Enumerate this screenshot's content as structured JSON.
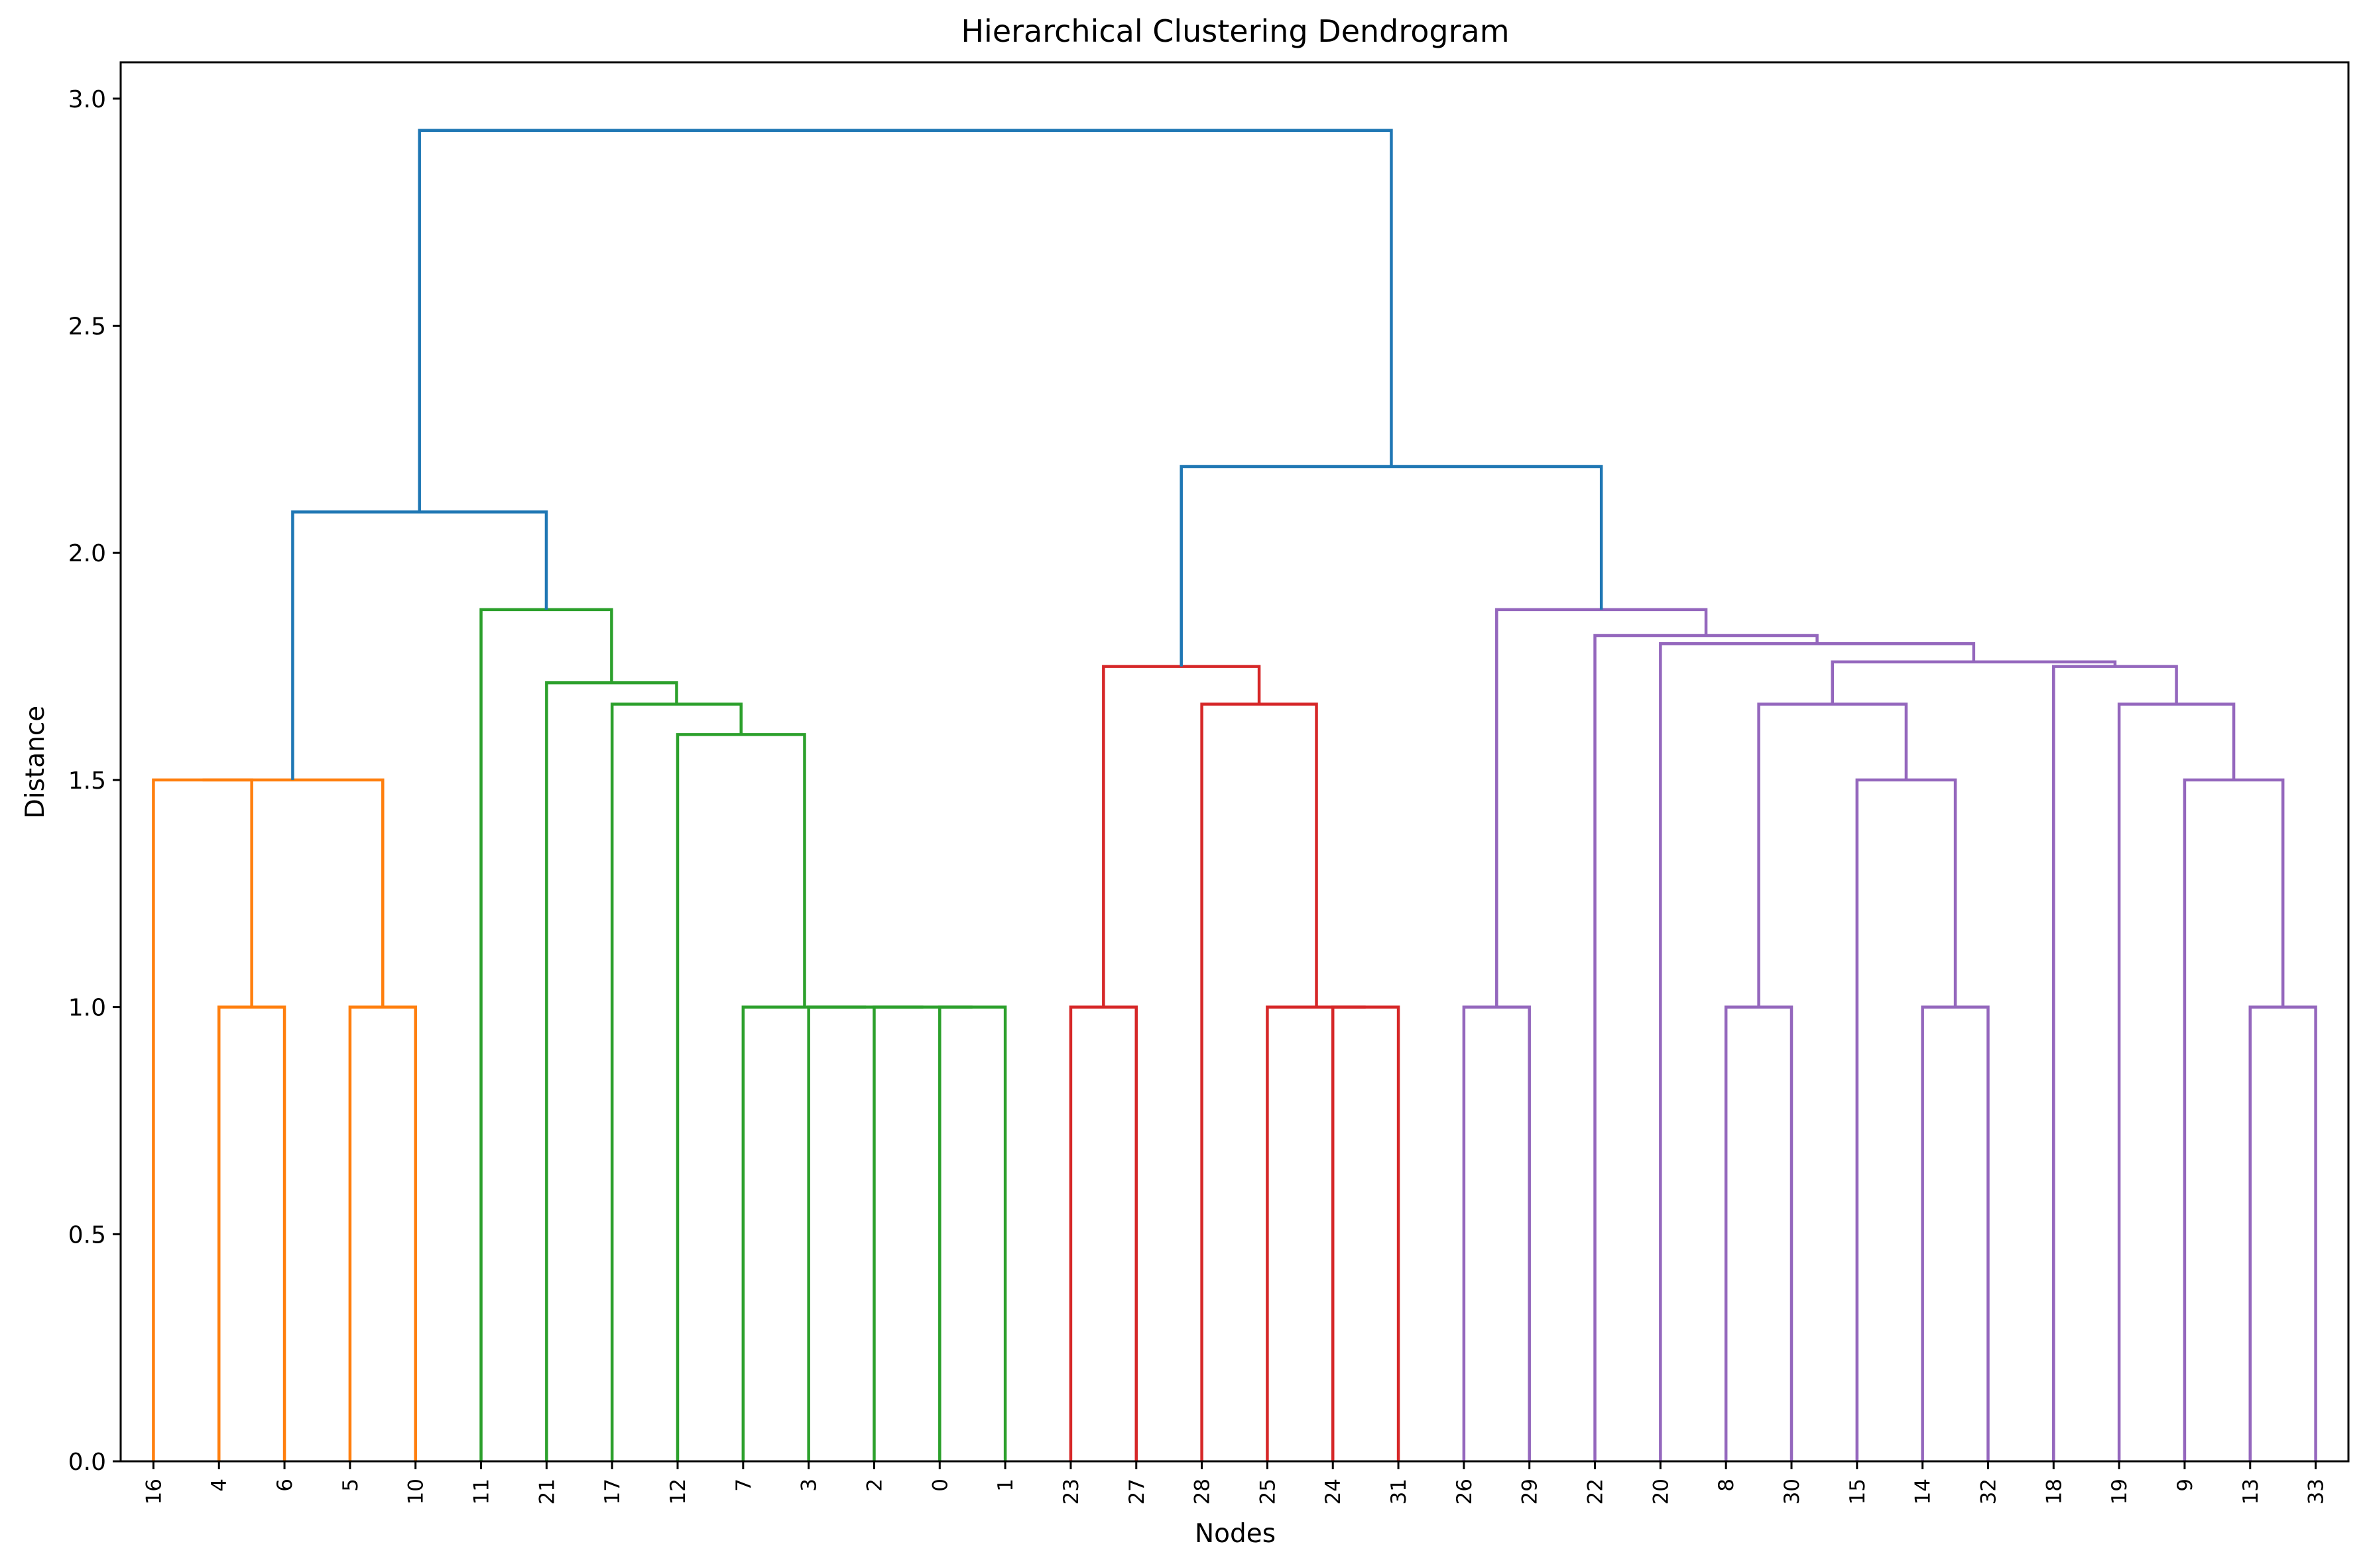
{
  "chart_data": {
    "type": "dendrogram",
    "title": "Hierarchical Clustering Dendrogram",
    "xlabel": "Nodes",
    "ylabel": "Distance",
    "ylim": [
      0,
      3.08
    ],
    "yticks": [
      "0.0",
      "0.5",
      "1.0",
      "1.5",
      "2.0",
      "2.5",
      "3.0"
    ],
    "ytick_values": [
      0,
      0.5,
      1.0,
      1.5,
      2.0,
      2.5,
      3.0
    ],
    "leaves": [
      "16",
      "4",
      "6",
      "5",
      "10",
      "11",
      "21",
      "17",
      "12",
      "7",
      "3",
      "2",
      "0",
      "1",
      "23",
      "27",
      "28",
      "25",
      "24",
      "31",
      "26",
      "29",
      "22",
      "20",
      "8",
      "30",
      "15",
      "14",
      "32",
      "18",
      "19",
      "9",
      "13",
      "33"
    ],
    "colors": {
      "root": "#1f77b4",
      "orange": "#ff7f0e",
      "green": "#2ca02c",
      "red": "#d62728",
      "purple": "#9467bd"
    },
    "links": [
      {
        "left": "L:1",
        "right": "L:2",
        "height": 1.0,
        "color": "orange"
      },
      {
        "left": "L:3",
        "right": "L:4",
        "height": 1.0,
        "color": "orange"
      },
      {
        "left": "L:0",
        "right": "N:0",
        "height": 1.5,
        "color": "orange"
      },
      {
        "left": "N:2",
        "right": "N:1",
        "height": 1.5,
        "color": "orange"
      },
      {
        "left": "L:12",
        "right": "L:13",
        "height": 1.0,
        "color": "green"
      },
      {
        "left": "L:11",
        "right": "N:4",
        "height": 1.0,
        "color": "green"
      },
      {
        "left": "L:10",
        "right": "N:5",
        "height": 1.0,
        "color": "green"
      },
      {
        "left": "L:9",
        "right": "N:6",
        "height": 1.0,
        "color": "green"
      },
      {
        "left": "L:8",
        "right": "N:7",
        "height": 1.6,
        "color": "green"
      },
      {
        "left": "L:7",
        "right": "N:8",
        "height": 1.667,
        "color": "green"
      },
      {
        "left": "L:6",
        "right": "N:9",
        "height": 1.714,
        "color": "green"
      },
      {
        "left": "L:5",
        "right": "N:10",
        "height": 1.875,
        "color": "green"
      },
      {
        "left": "N:3",
        "right": "N:11",
        "height": 2.09,
        "color": "root"
      },
      {
        "left": "L:14",
        "right": "L:15",
        "height": 1.0,
        "color": "red"
      },
      {
        "left": "L:18",
        "right": "L:19",
        "height": 1.0,
        "color": "red"
      },
      {
        "left": "L:17",
        "right": "N:14",
        "height": 1.0,
        "color": "red"
      },
      {
        "left": "L:16",
        "right": "N:15",
        "height": 1.667,
        "color": "red"
      },
      {
        "left": "N:13",
        "right": "N:16",
        "height": 1.75,
        "color": "red"
      },
      {
        "left": "L:20",
        "right": "L:21",
        "height": 1.0,
        "color": "purple"
      },
      {
        "left": "L:24",
        "right": "L:25",
        "height": 1.0,
        "color": "purple"
      },
      {
        "left": "L:27",
        "right": "L:28",
        "height": 1.0,
        "color": "purple"
      },
      {
        "left": "L:26",
        "right": "N:20",
        "height": 1.5,
        "color": "purple"
      },
      {
        "left": "N:19",
        "right": "N:21",
        "height": 1.667,
        "color": "purple"
      },
      {
        "left": "L:32",
        "right": "L:33",
        "height": 1.0,
        "color": "purple"
      },
      {
        "left": "L:31",
        "right": "N:23",
        "height": 1.5,
        "color": "purple"
      },
      {
        "left": "L:30",
        "right": "N:24",
        "height": 1.667,
        "color": "purple"
      },
      {
        "left": "L:29",
        "right": "N:25",
        "height": 1.75,
        "color": "purple"
      },
      {
        "left": "N:22",
        "right": "N:26",
        "height": 1.76,
        "color": "purple"
      },
      {
        "left": "L:23",
        "right": "N:27",
        "height": 1.8,
        "color": "purple"
      },
      {
        "left": "L:22",
        "right": "N:28",
        "height": 1.818,
        "color": "purple"
      },
      {
        "left": "N:18",
        "right": "N:29",
        "height": 1.875,
        "color": "purple"
      },
      {
        "left": "N:17",
        "right": "N:30",
        "height": 2.19,
        "color": "root"
      },
      {
        "left": "N:12",
        "right": "N:31",
        "height": 2.93,
        "color": "root"
      }
    ]
  }
}
